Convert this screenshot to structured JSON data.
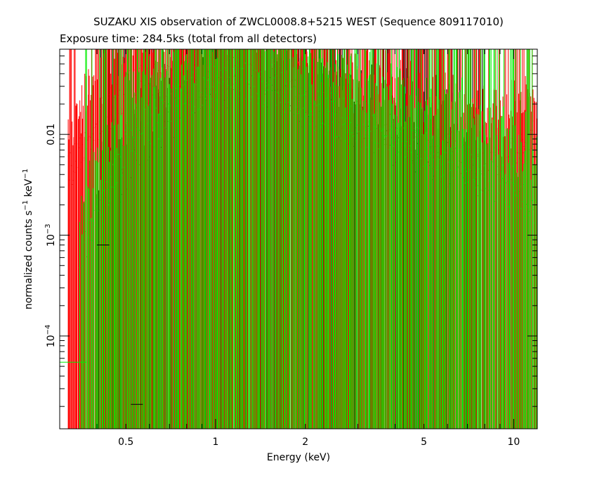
{
  "chart_data": {
    "type": "scatter",
    "title": "SUZAKU XIS observation of ZWCL0008.8+5215 WEST (Sequence 809117010)",
    "subtitle": "Exposure time: 284.5ks (total from all detectors)",
    "xlabel": "Energy (keV)",
    "ylabel_main": "normalized counts s",
    "ylabel_sup1": "−1",
    "ylabel_mid": " keV",
    "ylabel_sup2": "−1",
    "x_scale": "log",
    "y_scale": "log",
    "xlim": [
      0.3,
      12
    ],
    "ylim": [
      1.2e-05,
      0.07
    ],
    "grid": false,
    "x_ticks": [
      {
        "value": 0.5,
        "label": "0.5"
      },
      {
        "value": 1,
        "label": "1"
      },
      {
        "value": 2,
        "label": "2"
      },
      {
        "value": 5,
        "label": "5"
      },
      {
        "value": 10,
        "label": "10"
      }
    ],
    "y_ticks": [
      {
        "value": 0.01,
        "base": "0.01",
        "exp": ""
      },
      {
        "value": 0.001,
        "base": "10",
        "exp": "−3"
      },
      {
        "value": 0.0001,
        "base": "10",
        "exp": "−4"
      }
    ],
    "series": [
      {
        "color": "#ff0000",
        "points": [
          [
            0.32,
            0.004
          ],
          [
            0.36,
            0.008
          ],
          [
            0.4,
            0.012
          ],
          [
            0.45,
            0.02
          ],
          [
            0.5,
            0.025
          ],
          [
            0.55,
            0.03
          ],
          [
            0.6,
            0.032
          ],
          [
            0.7,
            0.035
          ],
          [
            0.8,
            0.038
          ],
          [
            0.9,
            0.04
          ],
          [
            1.0,
            0.042
          ],
          [
            1.2,
            0.045
          ],
          [
            1.4,
            0.04
          ],
          [
            1.6,
            0.035
          ],
          [
            1.8,
            0.03
          ],
          [
            2.0,
            0.025
          ],
          [
            2.5,
            0.018
          ],
          [
            3.0,
            0.014
          ],
          [
            4.0,
            0.01
          ],
          [
            5.0,
            0.008
          ],
          [
            6.0,
            0.007
          ],
          [
            7.0,
            0.006
          ],
          [
            8.0,
            0.006
          ],
          [
            9.0,
            0.005
          ],
          [
            10.0,
            0.006
          ],
          [
            11.0,
            0.008
          ],
          [
            12.0,
            0.01
          ]
        ]
      },
      {
        "color": "#00ee00",
        "points": [
          [
            0.35,
            0.0005
          ],
          [
            0.5,
            0.008
          ],
          [
            0.7,
            0.018
          ],
          [
            0.8,
            0.025
          ],
          [
            0.9,
            0.03
          ],
          [
            1.0,
            0.033
          ],
          [
            1.2,
            0.035
          ],
          [
            1.4,
            0.033
          ],
          [
            1.6,
            0.028
          ],
          [
            1.8,
            0.024
          ],
          [
            2.0,
            0.02
          ],
          [
            2.5,
            0.015
          ],
          [
            3.0,
            0.012
          ],
          [
            4.0,
            0.009
          ],
          [
            5.0,
            0.007
          ],
          [
            6.0,
            0.006
          ],
          [
            7.0,
            0.005
          ],
          [
            8.0,
            0.004
          ],
          [
            10.0,
            0.003
          ],
          [
            12.0,
            0.002
          ]
        ]
      },
      {
        "color": "#000000",
        "points": [
          [
            0.4,
            0.0012
          ],
          [
            0.6,
            0.008
          ],
          [
            0.8,
            0.02
          ],
          [
            1.0,
            0.028
          ],
          [
            1.2,
            0.03
          ],
          [
            1.4,
            0.028
          ],
          [
            1.6,
            0.024
          ],
          [
            1.8,
            0.021
          ],
          [
            2.0,
            0.018
          ],
          [
            2.5,
            0.013
          ],
          [
            3.0,
            0.01
          ],
          [
            4.0,
            0.008
          ],
          [
            5.0,
            0.006
          ],
          [
            6.0,
            0.005
          ],
          [
            7.0,
            0.004
          ],
          [
            8.0,
            0.004
          ]
        ]
      }
    ]
  }
}
